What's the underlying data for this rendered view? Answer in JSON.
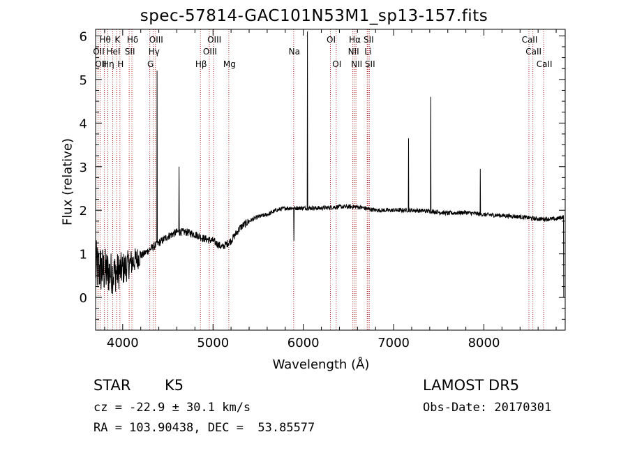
{
  "chart_data": {
    "type": "line",
    "title": "spec-57814-GAC101N53M1_sp13-157.fits",
    "xlabel": "Wavelength (Å)",
    "ylabel": "Flux (relative)",
    "xlim": [
      3700,
      8900
    ],
    "ylim": [
      -0.75,
      6.15
    ],
    "xticks": [
      4000,
      5000,
      6000,
      7000,
      8000
    ],
    "yticks": [
      0,
      1,
      2,
      3,
      4,
      5,
      6
    ],
    "grid": false,
    "continuum": [
      [
        3700,
        0.7
      ],
      [
        3800,
        0.6
      ],
      [
        3900,
        0.55
      ],
      [
        4000,
        0.65
      ],
      [
        4100,
        0.8
      ],
      [
        4200,
        0.95
      ],
      [
        4300,
        1.1
      ],
      [
        4400,
        1.25
      ],
      [
        4500,
        1.4
      ],
      [
        4600,
        1.5
      ],
      [
        4700,
        1.5
      ],
      [
        4800,
        1.45
      ],
      [
        4900,
        1.35
      ],
      [
        5000,
        1.3
      ],
      [
        5100,
        1.15
      ],
      [
        5200,
        1.3
      ],
      [
        5300,
        1.6
      ],
      [
        5400,
        1.75
      ],
      [
        5500,
        1.85
      ],
      [
        5600,
        1.9
      ],
      [
        5700,
        2.0
      ],
      [
        5800,
        2.05
      ],
      [
        5900,
        2.05
      ],
      [
        6000,
        2.05
      ],
      [
        6200,
        2.05
      ],
      [
        6400,
        2.08
      ],
      [
        6600,
        2.08
      ],
      [
        6800,
        2.0
      ],
      [
        7000,
        2.0
      ],
      [
        7200,
        2.0
      ],
      [
        7400,
        1.98
      ],
      [
        7600,
        1.93
      ],
      [
        7800,
        1.95
      ],
      [
        8000,
        1.9
      ],
      [
        8200,
        1.88
      ],
      [
        8400,
        1.85
      ],
      [
        8600,
        1.8
      ],
      [
        8800,
        1.8
      ],
      [
        8880,
        1.85
      ]
    ],
    "emission_peaks": [
      {
        "x": 4380,
        "y": 5.2
      },
      {
        "x": 4625,
        "y": 3.0
      },
      {
        "x": 6045,
        "y": 6.1
      },
      {
        "x": 7165,
        "y": 3.65
      },
      {
        "x": 7410,
        "y": 4.6
      },
      {
        "x": 7960,
        "y": 2.95
      }
    ],
    "absorption_dips": [
      {
        "x": 5895,
        "y": 1.3
      },
      {
        "x": 8885,
        "y": 0.0
      }
    ],
    "line_markers": [
      {
        "x": 3727,
        "label": "OII",
        "row": 1
      },
      {
        "x": 3750,
        "label": "OII",
        "row": 2
      },
      {
        "x": 3798,
        "label": "Hθ",
        "row": 0
      },
      {
        "x": 3835,
        "label": "Hη",
        "row": 2
      },
      {
        "x": 3889,
        "label": "HeI",
        "row": 1
      },
      {
        "x": 3934,
        "label": "K",
        "row": 0
      },
      {
        "x": 3969,
        "label": "H",
        "row": 2
      },
      {
        "x": 4072,
        "label": "SII",
        "row": 1
      },
      {
        "x": 4102,
        "label": "Hδ",
        "row": 0
      },
      {
        "x": 4300,
        "label": "G",
        "row": 2
      },
      {
        "x": 4340,
        "label": "Hγ",
        "row": 1
      },
      {
        "x": 4363,
        "label": "OIII",
        "row": 0
      },
      {
        "x": 4861,
        "label": "Hβ",
        "row": 2
      },
      {
        "x": 4959,
        "label": "OIII",
        "row": 1
      },
      {
        "x": 5007,
        "label": "OIII",
        "row": 0
      },
      {
        "x": 5175,
        "label": "Mg",
        "row": 2
      },
      {
        "x": 5893,
        "label": "Na",
        "row": 1
      },
      {
        "x": 6300,
        "label": "OI",
        "row": 0
      },
      {
        "x": 6364,
        "label": "OI",
        "row": 2
      },
      {
        "x": 6548,
        "label": "NII",
        "row": 1
      },
      {
        "x": 6563,
        "label": "Hα",
        "row": 0
      },
      {
        "x": 6583,
        "label": "NII",
        "row": 2
      },
      {
        "x": 6708,
        "label": "Li",
        "row": 1
      },
      {
        "x": 6716,
        "label": "SII",
        "row": 0
      },
      {
        "x": 6731,
        "label": "SII",
        "row": 2
      },
      {
        "x": 8498,
        "label": "CaII",
        "row": 0
      },
      {
        "x": 8542,
        "label": "CaII",
        "row": 1
      },
      {
        "x": 8662,
        "label": "CaII",
        "row": 2
      }
    ],
    "colors": {
      "spectrum": "#000000",
      "markers": "#b22222",
      "axes": "#000000"
    }
  },
  "info": {
    "class_label": "STAR",
    "subclass": "K5",
    "survey": "LAMOST DR5",
    "cz_text": "cz = -22.9 ± 30.1 km/s",
    "obs_date": "Obs-Date: 20170301",
    "radec": "RA = 103.90438, DEC =  53.85577"
  }
}
